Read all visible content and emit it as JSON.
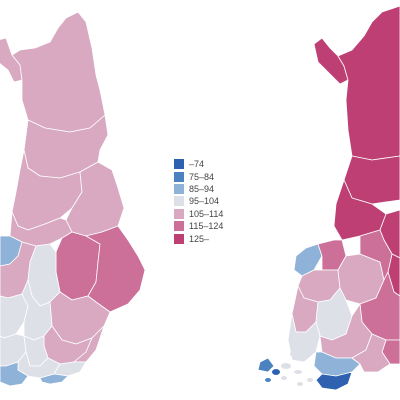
{
  "legend": {
    "classes": [
      {
        "label": "–74",
        "color": "#2e62b0"
      },
      {
        "label": "75–84",
        "color": "#4a83c0"
      },
      {
        "label": "85–94",
        "color": "#8fb3d8"
      },
      {
        "label": "95–104",
        "color": "#dde0e6"
      },
      {
        "label": "105–114",
        "color": "#d8a9c0"
      },
      {
        "label": "115–124",
        "color": "#cc6f99"
      },
      {
        "label": "125–",
        "color": "#be3f74"
      }
    ]
  },
  "maps": [
    {
      "name": "left-map",
      "regions": [
        {
          "id": "lapland-arm",
          "class": 4
        },
        {
          "id": "lapland-north",
          "class": 4
        },
        {
          "id": "lapland-south",
          "class": 4
        },
        {
          "id": "northern-ostrobothnia",
          "class": 4
        },
        {
          "id": "kainuu-west",
          "class": 4
        },
        {
          "id": "central-ostrobothnia",
          "class": 4
        },
        {
          "id": "kainuu",
          "class": 5
        },
        {
          "id": "north-karelia",
          "class": 5
        },
        {
          "id": "ostrobothnia-coast",
          "class": 2
        },
        {
          "id": "south-ostrobothnia",
          "class": 4
        },
        {
          "id": "central-finland",
          "class": 3
        },
        {
          "id": "north-savo",
          "class": 4
        },
        {
          "id": "satakunta",
          "class": 3
        },
        {
          "id": "pirkanmaa",
          "class": 3
        },
        {
          "id": "south-savo",
          "class": 4
        },
        {
          "id": "southwest-finland",
          "class": 3
        },
        {
          "id": "tavastia",
          "class": 3
        },
        {
          "id": "south-karelia",
          "class": 4
        },
        {
          "id": "uusimaa",
          "class": 3
        },
        {
          "id": "kymenlaakso",
          "class": 3
        },
        {
          "id": "southwest-coast",
          "class": 2
        },
        {
          "id": "helsinki-coast",
          "class": 2
        }
      ]
    },
    {
      "name": "right-map",
      "regions": [
        {
          "id": "lapland-arm",
          "class": 6
        },
        {
          "id": "lapland-north",
          "class": 6
        },
        {
          "id": "lapland-south",
          "class": 6
        },
        {
          "id": "northern-ostrobothnia",
          "class": 6
        },
        {
          "id": "kainuu",
          "class": 6
        },
        {
          "id": "north-karelia",
          "class": 6
        },
        {
          "id": "ostrobothnia-coast",
          "class": 2
        },
        {
          "id": "central-ostrobothnia",
          "class": 5
        },
        {
          "id": "south-ostrobothnia",
          "class": 4
        },
        {
          "id": "central-finland",
          "class": 4
        },
        {
          "id": "north-savo",
          "class": 5
        },
        {
          "id": "satakunta",
          "class": 4
        },
        {
          "id": "pirkanmaa",
          "class": 3
        },
        {
          "id": "south-savo",
          "class": 5
        },
        {
          "id": "southwest-finland",
          "class": 3
        },
        {
          "id": "tavastia",
          "class": 4
        },
        {
          "id": "south-karelia",
          "class": 5
        },
        {
          "id": "uusimaa",
          "class": 2
        },
        {
          "id": "kymenlaakso",
          "class": 4
        },
        {
          "id": "helsinki-coast",
          "class": 0
        },
        {
          "id": "archipelago",
          "class": 1
        }
      ]
    }
  ]
}
